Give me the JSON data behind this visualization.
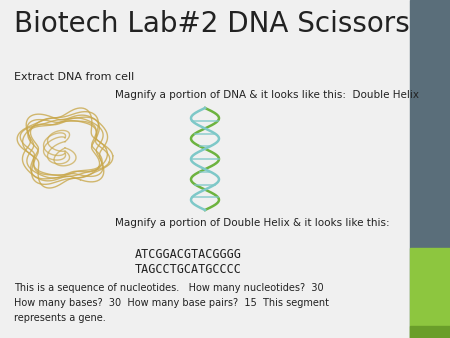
{
  "title": "Biotech Lab#2 DNA Scissors",
  "title_fontsize": 20,
  "bg_color": "#f0f0f0",
  "sidebar_color": "#5a6e7a",
  "sidebar_green": "#8dc63f",
  "sidebar_green2": "#6a9e2a",
  "text_color": "#222222",
  "extract_label": "Extract DNA from cell",
  "magnify1_text": "Magnify a portion of DNA & it looks like this:  Double Helix",
  "magnify2_text": "Magnify a portion of Double Helix & it looks like this:",
  "seq1": "ATCGGACGTACGGGG",
  "seq2": "TAGCCTGCATGCCCC",
  "bottom_text": "This is a sequence of nucleotides.   How many nucleotides?  30\nHow many bases?  30  How many base pairs?  15  This segment\nrepresents a gene.",
  "cell_color": "#c9a84c",
  "helix_green": "#6db33f",
  "helix_cyan": "#7ec8c8",
  "font_family": "DejaVu Sans"
}
